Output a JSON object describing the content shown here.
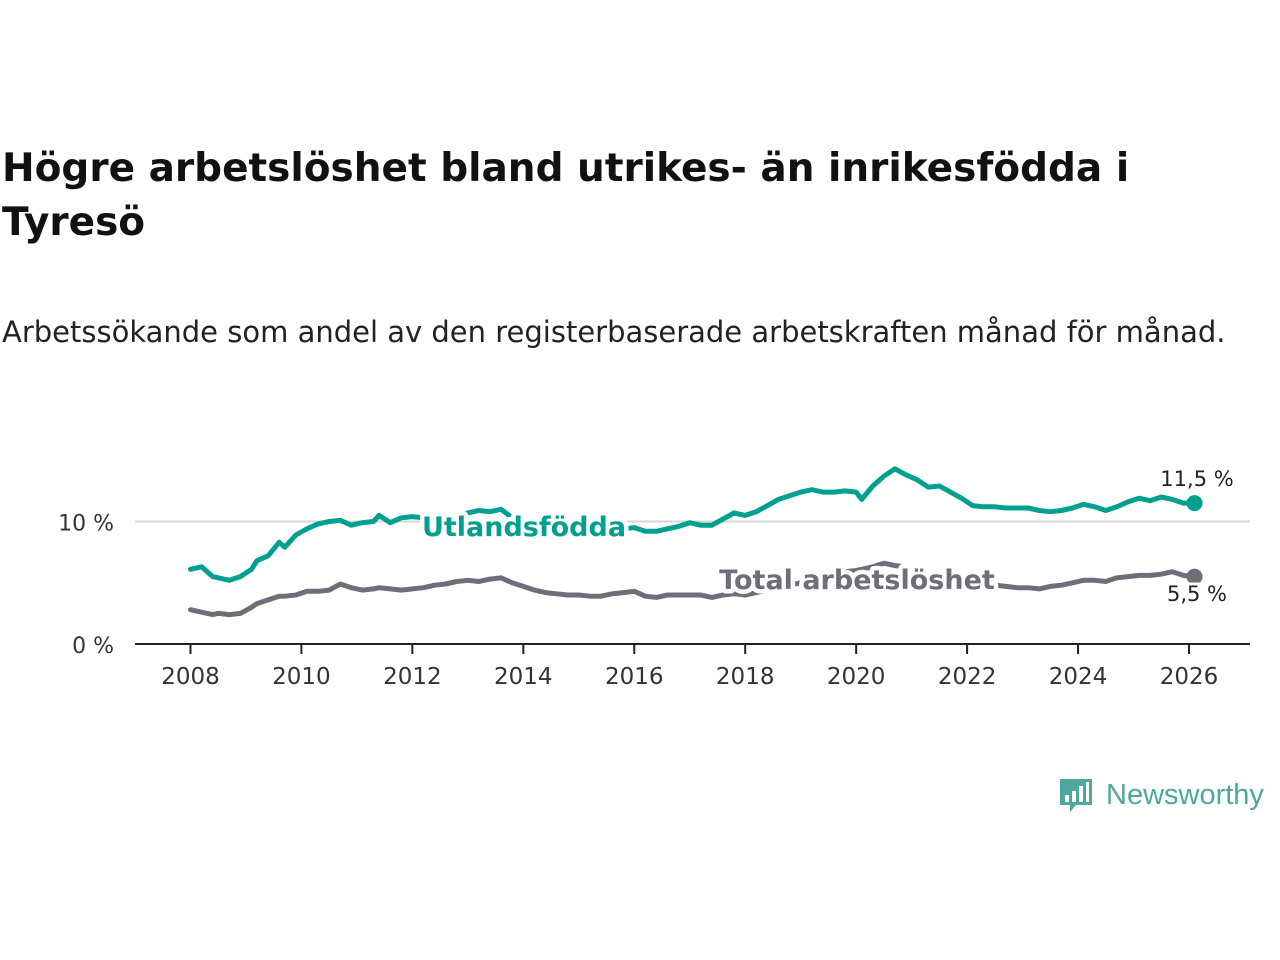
{
  "header": {
    "title": "Högre arbetslöshet bland utrikes- än inrikesfödda i Tyresö",
    "subtitle": "Arbetssökande som andel av den registerbaserade arbetskraften månad för månad."
  },
  "colors": {
    "utlandsfodda": "#00a090",
    "total": "#6e6e78",
    "axis": "#222222",
    "grid": "#d6d6d6"
  },
  "logo": {
    "text": "Newsworthy",
    "icon": "newsworthy-bar-chart-icon"
  },
  "chart_data": {
    "type": "line",
    "title": "Högre arbetslöshet bland utrikes- än inrikesfödda i Tyresö",
    "xlabel": "",
    "ylabel": "",
    "xlim": [
      2007.0,
      2027.1
    ],
    "ylim": [
      0,
      16
    ],
    "x_ticks": [
      2008,
      2010,
      2012,
      2014,
      2016,
      2018,
      2020,
      2022,
      2024,
      2026
    ],
    "x_tick_labels": [
      "2008",
      "2010",
      "2012",
      "2014",
      "2016",
      "2018",
      "2020",
      "2022",
      "2024",
      "2026"
    ],
    "y_ticks": [
      0,
      10
    ],
    "y_tick_labels": [
      "0 %",
      "10 %"
    ],
    "grid": "horizontal",
    "series": [
      {
        "name": "Utlandsfödda",
        "label": "Utlandsfödda",
        "end_label": "11,5 %",
        "x": [
          2008.0,
          2008.2,
          2008.4,
          2008.5,
          2008.7,
          2008.9,
          2009.1,
          2009.2,
          2009.4,
          2009.6,
          2009.7,
          2009.9,
          2010.1,
          2010.3,
          2010.5,
          2010.7,
          2010.9,
          2011.1,
          2011.3,
          2011.4,
          2011.6,
          2011.8,
          2012.0,
          2012.2,
          2012.4,
          2012.6,
          2012.8,
          2013.0,
          2013.2,
          2013.4,
          2013.6,
          2013.8,
          2014.0,
          2014.2,
          2014.4,
          2014.6,
          2014.8,
          2015.0,
          2015.2,
          2015.4,
          2015.6,
          2015.8,
          2016.0,
          2016.2,
          2016.4,
          2016.6,
          2016.8,
          2017.0,
          2017.2,
          2017.4,
          2017.6,
          2017.8,
          2018.0,
          2018.2,
          2018.4,
          2018.6,
          2018.8,
          2019.0,
          2019.2,
          2019.4,
          2019.6,
          2019.8,
          2020.0,
          2020.1,
          2020.3,
          2020.5,
          2020.7,
          2020.9,
          2021.1,
          2021.3,
          2021.5,
          2021.7,
          2021.9,
          2022.1,
          2022.3,
          2022.5,
          2022.7,
          2022.9,
          2023.1,
          2023.3,
          2023.5,
          2023.7,
          2023.9,
          2024.1,
          2024.3,
          2024.5,
          2024.7,
          2024.9,
          2025.1,
          2025.3,
          2025.5,
          2025.7,
          2025.9,
          2026.1
        ],
        "values": [
          6.1,
          6.3,
          5.5,
          5.4,
          5.2,
          5.5,
          6.1,
          6.8,
          7.2,
          8.3,
          7.9,
          8.9,
          9.4,
          9.8,
          10.0,
          10.1,
          9.7,
          9.9,
          10.0,
          10.5,
          9.9,
          10.3,
          10.4,
          10.3,
          10.2,
          10.5,
          10.4,
          10.7,
          10.9,
          10.8,
          11.0,
          10.3,
          10.1,
          9.9,
          9.6,
          9.4,
          9.3,
          9.2,
          9.1,
          9.1,
          9.3,
          9.4,
          9.5,
          9.2,
          9.2,
          9.4,
          9.6,
          9.9,
          9.7,
          9.7,
          10.2,
          10.7,
          10.5,
          10.8,
          11.3,
          11.8,
          12.1,
          12.4,
          12.6,
          12.4,
          12.4,
          12.5,
          12.4,
          11.8,
          12.9,
          13.7,
          14.3,
          13.8,
          13.4,
          12.8,
          12.9,
          12.4,
          11.9,
          11.3,
          11.2,
          11.2,
          11.1,
          11.1,
          11.1,
          10.9,
          10.8,
          10.9,
          11.1,
          11.4,
          11.2,
          10.9,
          11.2,
          11.6,
          11.9,
          11.7,
          12.0,
          11.8,
          11.5,
          11.5
        ]
      },
      {
        "name": "Total arbetslöshet",
        "label": "Total arbetslöshet",
        "end_label": "5,5 %",
        "x": [
          2008.0,
          2008.2,
          2008.4,
          2008.5,
          2008.7,
          2008.9,
          2009.1,
          2009.2,
          2009.4,
          2009.6,
          2009.7,
          2009.9,
          2010.1,
          2010.3,
          2010.5,
          2010.7,
          2010.9,
          2011.1,
          2011.3,
          2011.4,
          2011.6,
          2011.8,
          2012.0,
          2012.2,
          2012.4,
          2012.6,
          2012.8,
          2013.0,
          2013.2,
          2013.4,
          2013.6,
          2013.8,
          2014.0,
          2014.2,
          2014.4,
          2014.6,
          2014.8,
          2015.0,
          2015.2,
          2015.4,
          2015.6,
          2015.8,
          2016.0,
          2016.2,
          2016.4,
          2016.6,
          2016.8,
          2017.0,
          2017.2,
          2017.4,
          2017.6,
          2017.8,
          2018.0,
          2018.2,
          2018.4,
          2018.6,
          2018.8,
          2019.0,
          2019.2,
          2019.4,
          2019.6,
          2019.8,
          2020.0,
          2020.1,
          2020.3,
          2020.5,
          2020.7,
          2020.9,
          2021.1,
          2021.3,
          2021.5,
          2021.7,
          2021.9,
          2022.1,
          2022.3,
          2022.5,
          2022.7,
          2022.9,
          2023.1,
          2023.3,
          2023.5,
          2023.7,
          2023.9,
          2024.1,
          2024.3,
          2024.5,
          2024.7,
          2024.9,
          2025.1,
          2025.3,
          2025.5,
          2025.7,
          2025.9,
          2026.1
        ],
        "values": [
          2.8,
          2.6,
          2.4,
          2.5,
          2.4,
          2.5,
          3.0,
          3.3,
          3.6,
          3.9,
          3.9,
          4.0,
          4.3,
          4.3,
          4.4,
          4.9,
          4.6,
          4.4,
          4.5,
          4.6,
          4.5,
          4.4,
          4.5,
          4.6,
          4.8,
          4.9,
          5.1,
          5.2,
          5.1,
          5.3,
          5.4,
          5.0,
          4.7,
          4.4,
          4.2,
          4.1,
          4.0,
          4.0,
          3.9,
          3.9,
          4.1,
          4.2,
          4.3,
          3.9,
          3.8,
          4.0,
          4.0,
          4.0,
          4.0,
          3.8,
          4.0,
          4.1,
          4.0,
          4.2,
          4.4,
          4.6,
          4.8,
          5.0,
          5.3,
          5.6,
          5.7,
          5.9,
          6.0,
          6.1,
          6.3,
          6.6,
          6.4,
          6.3,
          5.9,
          5.6,
          5.4,
          5.1,
          5.0,
          4.9,
          4.8,
          4.8,
          4.7,
          4.6,
          4.6,
          4.5,
          4.7,
          4.8,
          5.0,
          5.2,
          5.2,
          5.1,
          5.4,
          5.5,
          5.6,
          5.6,
          5.7,
          5.9,
          5.6,
          5.5
        ]
      }
    ]
  }
}
